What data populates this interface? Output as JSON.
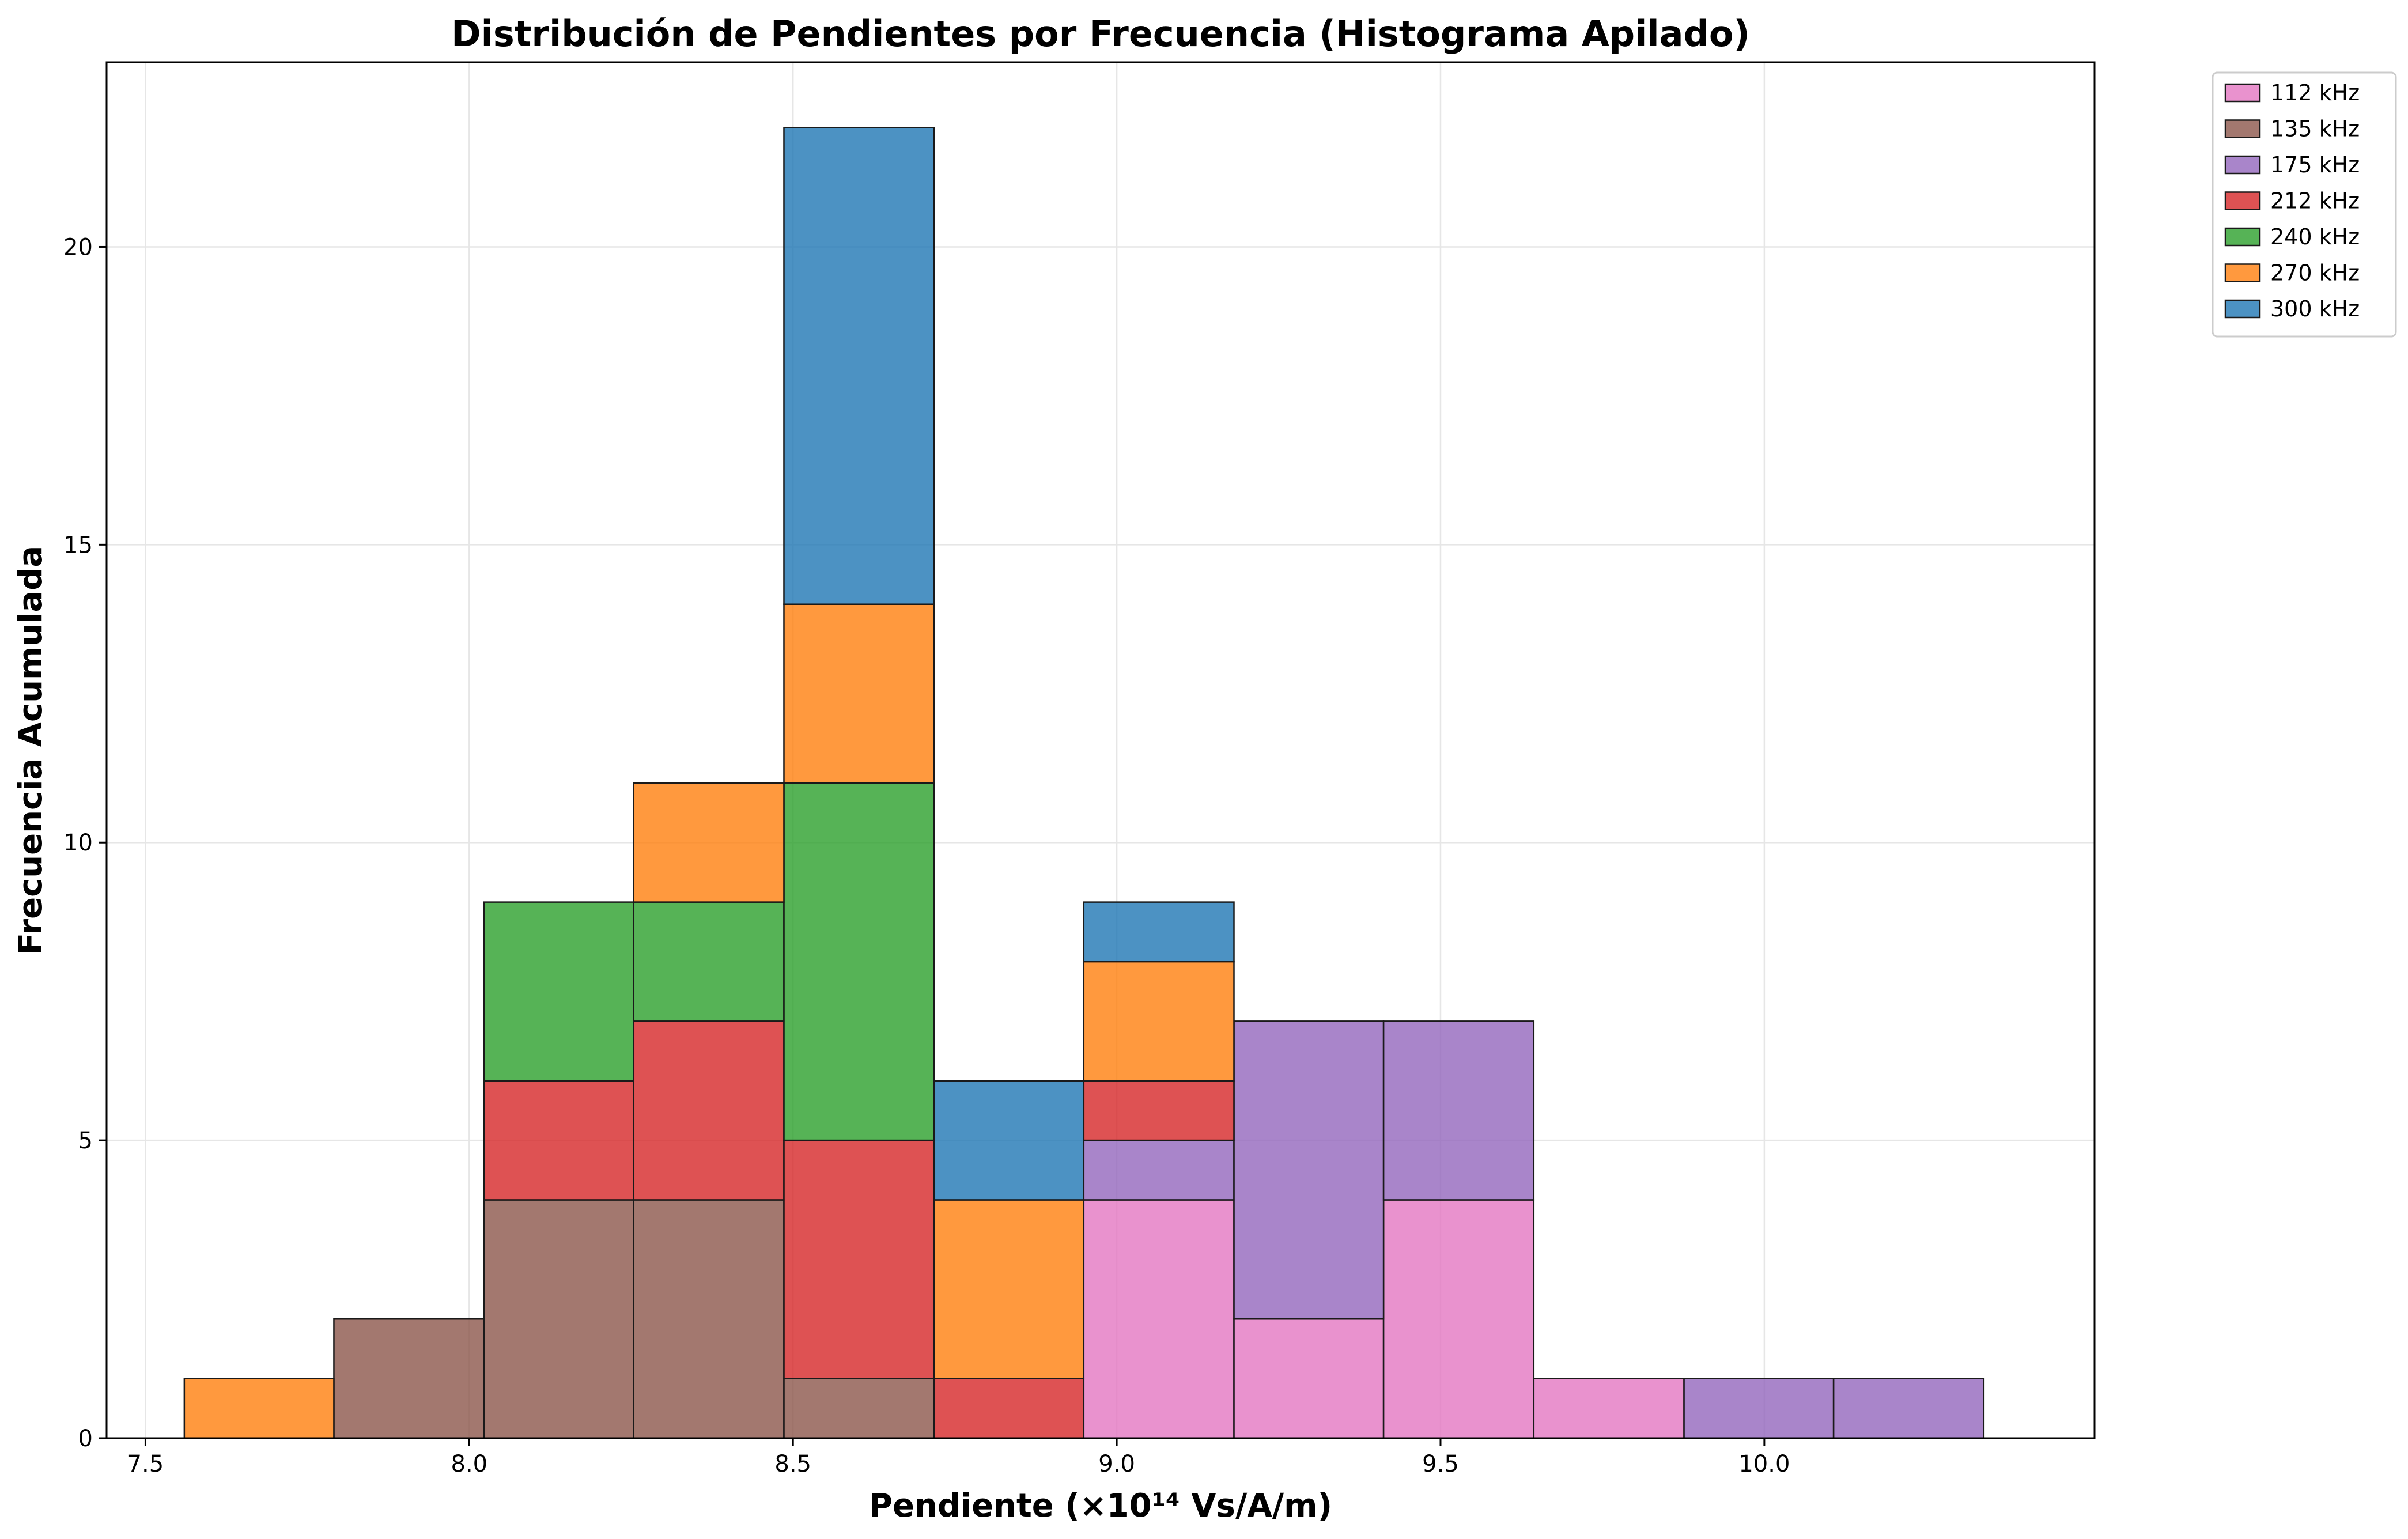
{
  "chart_data": {
    "type": "bar",
    "stacked": true,
    "title": "Distribución de Pendientes por Frecuencia (Histograma Apilado)",
    "xlabel": "Pendiente (×10¹⁴ Vs/A/m)",
    "ylabel": "Frecuencia Acumulada",
    "xlim": [
      7.44,
      10.51
    ],
    "ylim": [
      0,
      23.1
    ],
    "xticks": [
      7.5,
      8.0,
      8.5,
      9.0,
      9.5,
      10.0
    ],
    "xtick_labels": [
      "7.5",
      "8.0",
      "8.5",
      "9.0",
      "9.5",
      "10.0"
    ],
    "yticks": [
      0,
      5,
      10,
      15,
      20
    ],
    "ytick_labels": [
      "0",
      "5",
      "10",
      "15",
      "20"
    ],
    "grid": true,
    "legend_position": "outside-top-right",
    "bin_edges": [
      7.56,
      7.791,
      8.023,
      8.254,
      8.486,
      8.718,
      8.949,
      9.181,
      9.412,
      9.644,
      9.876,
      10.107,
      10.339
    ],
    "series": [
      {
        "name": "112 kHz",
        "color": "#e377c2",
        "values": [
          0,
          0,
          0,
          0,
          0,
          0,
          4,
          2,
          4,
          1,
          0,
          0
        ]
      },
      {
        "name": "135 kHz",
        "color": "#8c564b",
        "values": [
          0,
          2,
          4,
          4,
          1,
          0,
          0,
          0,
          0,
          0,
          0,
          0
        ]
      },
      {
        "name": "175 kHz",
        "color": "#9467bd",
        "values": [
          0,
          0,
          0,
          0,
          0,
          0,
          1,
          5,
          3,
          0,
          1,
          1
        ]
      },
      {
        "name": "212 kHz",
        "color": "#d62728",
        "values": [
          0,
          0,
          2,
          3,
          4,
          1,
          1,
          0,
          0,
          0,
          0,
          0
        ]
      },
      {
        "name": "240 kHz",
        "color": "#2ca02c",
        "values": [
          0,
          0,
          3,
          2,
          6,
          0,
          0,
          0,
          0,
          0,
          0,
          0
        ]
      },
      {
        "name": "270 kHz",
        "color": "#ff7f0e",
        "values": [
          1,
          0,
          0,
          2,
          3,
          3,
          2,
          0,
          0,
          0,
          0,
          0
        ]
      },
      {
        "name": "300 kHz",
        "color": "#1f77b4",
        "values": [
          0,
          0,
          0,
          0,
          8,
          2,
          1,
          0,
          0,
          0,
          0,
          0
        ]
      }
    ]
  }
}
